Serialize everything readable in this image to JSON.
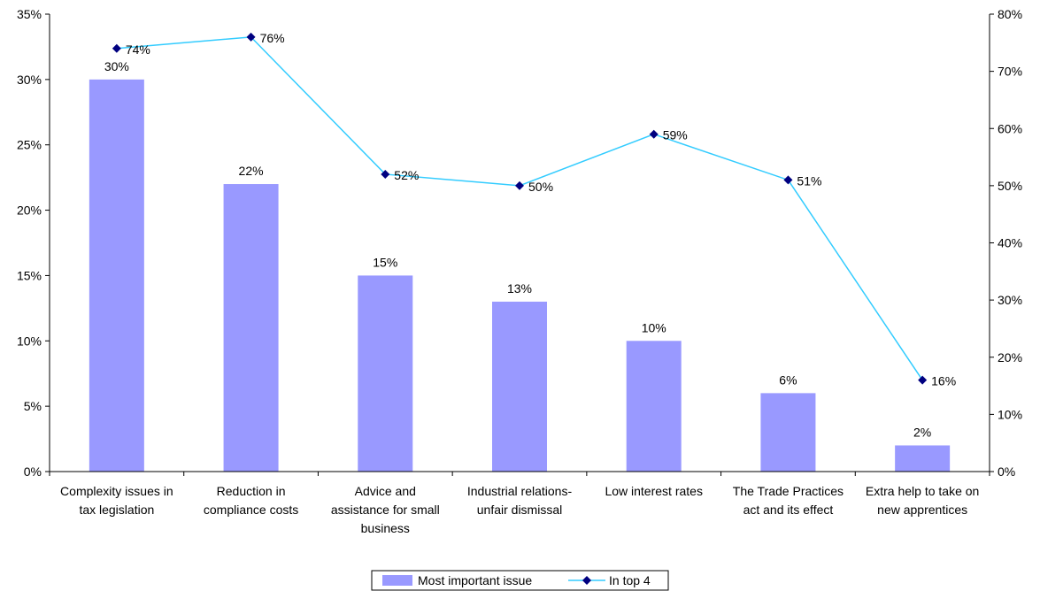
{
  "chart_data": {
    "type": "bar",
    "categories": [
      [
        "Complexity issues in",
        "tax legislation"
      ],
      [
        "Reduction in",
        "compliance costs"
      ],
      [
        "Advice and",
        "assistance for small",
        "business"
      ],
      [
        "Industrial relations-",
        "unfair dismissal"
      ],
      [
        "Low interest rates"
      ],
      [
        "The Trade Practices",
        "act and its effect"
      ],
      [
        "Extra help to take on",
        "new apprentices"
      ]
    ],
    "series": [
      {
        "name": "Most important issue",
        "kind": "bar",
        "axis": "left",
        "color": "#9999FF",
        "values": [
          30,
          22,
          15,
          13,
          10,
          6,
          2
        ],
        "labels": [
          "30%",
          "22%",
          "15%",
          "13%",
          "10%",
          "6%",
          "2%"
        ]
      },
      {
        "name": "In top 4",
        "kind": "line",
        "axis": "right",
        "color": "#33CCFF",
        "marker_color": "#000080",
        "values": [
          74,
          76,
          52,
          50,
          59,
          51,
          16
        ],
        "labels": [
          "74%",
          "76%",
          "52%",
          "50%",
          "59%",
          "51%",
          "16%"
        ]
      }
    ],
    "y_left": {
      "ylim": [
        0,
        35
      ],
      "ticks": [
        0,
        5,
        10,
        15,
        20,
        25,
        30,
        35
      ],
      "tick_labels": [
        "0%",
        "5%",
        "10%",
        "15%",
        "20%",
        "25%",
        "30%",
        "35%"
      ]
    },
    "y_right": {
      "ylim": [
        0,
        80
      ],
      "ticks": [
        0,
        10,
        20,
        30,
        40,
        50,
        60,
        70,
        80
      ],
      "tick_labels": [
        "0%",
        "10%",
        "20%",
        "30%",
        "40%",
        "50%",
        "60%",
        "70%",
        "80%"
      ]
    },
    "grid": false,
    "legend_position": "bottom-center"
  }
}
